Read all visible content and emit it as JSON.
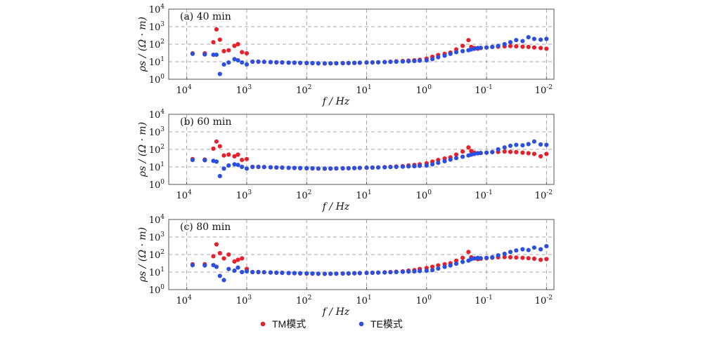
{
  "legend": [
    {
      "label": "TM模式",
      "color": "#e8202a"
    },
    {
      "label": "TE模式",
      "color": "#2b4fe0"
    }
  ],
  "chart_data": [
    {
      "type": "scatter",
      "title": "(a) 40 min",
      "xlabel": "f / Hz",
      "ylabel": "ρs / (Ω · m)",
      "xscale": "log",
      "x_reversed": true,
      "xlim": [
        20000,
        0.0075
      ],
      "yscale": "log",
      "ylim": [
        1,
        10000
      ],
      "grid": true,
      "series": [
        {
          "name": "TM模式",
          "color": "#e8202a",
          "x": [
            8000,
            5000,
            3600,
            3200,
            2800,
            2400,
            2000,
            1600,
            1400,
            1200,
            1000,
            800,
            640,
            512,
            400,
            320,
            256,
            200,
            160,
            128,
            100,
            80,
            64,
            50,
            40,
            32,
            25,
            20,
            16,
            13,
            10,
            8,
            6.4,
            5,
            4,
            3.2,
            2.5,
            2,
            1.6,
            1.3,
            1,
            0.8,
            0.64,
            0.5,
            0.4,
            0.32,
            0.25,
            0.2,
            0.18,
            0.16,
            0.14,
            0.125,
            0.1,
            0.08,
            0.064,
            0.05,
            0.04,
            0.032,
            0.025,
            0.02,
            0.016,
            0.0125,
            0.01
          ],
          "y": [
            30,
            30,
            130,
            700,
            180,
            40,
            45,
            80,
            100,
            35,
            30,
            10,
            10,
            9.8,
            9.5,
            9.2,
            9,
            8.8,
            8.7,
            8.5,
            8.3,
            8.2,
            8,
            7.9,
            8,
            8.1,
            8.2,
            8.4,
            8.5,
            8.7,
            8.9,
            9,
            9.3,
            9.6,
            10,
            10.5,
            11,
            11.5,
            12,
            13,
            15,
            19,
            24,
            28,
            33,
            50,
            80,
            170,
            70,
            60,
            55,
            60,
            65,
            70,
            72,
            75,
            78,
            75,
            72,
            70,
            65,
            60,
            55
          ]
        },
        {
          "name": "TE模式",
          "color": "#2b4fe0",
          "x": [
            8000,
            5000,
            3600,
            3200,
            2800,
            2400,
            2000,
            1600,
            1400,
            1200,
            1000,
            800,
            640,
            512,
            400,
            320,
            256,
            200,
            160,
            128,
            100,
            80,
            64,
            50,
            40,
            32,
            25,
            20,
            16,
            13,
            10,
            8,
            6.4,
            5,
            4,
            3.2,
            2.5,
            2,
            1.6,
            1.3,
            1,
            0.8,
            0.64,
            0.5,
            0.4,
            0.32,
            0.25,
            0.2,
            0.18,
            0.16,
            0.14,
            0.125,
            0.1,
            0.08,
            0.064,
            0.05,
            0.04,
            0.032,
            0.025,
            0.02,
            0.016,
            0.0125,
            0.01
          ],
          "y": [
            28,
            26,
            25,
            25,
            2,
            7,
            9,
            14,
            12,
            9,
            7,
            10,
            10,
            9.8,
            9.5,
            9.3,
            9.1,
            8.9,
            8.8,
            8.6,
            8.4,
            8.3,
            8.1,
            8,
            8.1,
            8.2,
            8.3,
            8.4,
            8.6,
            8.8,
            9,
            9.1,
            9.3,
            9.5,
            9.8,
            10,
            10.3,
            10.7,
            11,
            11.5,
            12,
            14,
            18,
            22,
            28,
            35,
            40,
            45,
            50,
            55,
            60,
            62,
            65,
            70,
            80,
            100,
            130,
            170,
            150,
            250,
            200,
            180,
            200
          ]
        }
      ]
    },
    {
      "type": "scatter",
      "title": "(b) 60 min",
      "xlabel": "f / Hz",
      "ylabel": "ρs / (Ω · m)",
      "xscale": "log",
      "x_reversed": true,
      "xlim": [
        20000,
        0.0075
      ],
      "yscale": "log",
      "ylim": [
        1,
        10000
      ],
      "grid": true,
      "series": [
        {
          "name": "TM模式",
          "color": "#e8202a",
          "x": [
            8000,
            5000,
            3600,
            3200,
            2800,
            2400,
            2000,
            1600,
            1400,
            1200,
            1000,
            800,
            640,
            512,
            400,
            320,
            256,
            200,
            160,
            128,
            100,
            80,
            64,
            50,
            40,
            32,
            25,
            20,
            16,
            13,
            10,
            8,
            6.4,
            5,
            4,
            3.2,
            2.5,
            2,
            1.6,
            1.3,
            1,
            0.8,
            0.64,
            0.5,
            0.4,
            0.32,
            0.25,
            0.2,
            0.18,
            0.16,
            0.14,
            0.125,
            0.1,
            0.08,
            0.064,
            0.05,
            0.04,
            0.032,
            0.025,
            0.02,
            0.016,
            0.0125,
            0.01
          ],
          "y": [
            28,
            26,
            110,
            280,
            150,
            45,
            50,
            40,
            50,
            25,
            28,
            10,
            10,
            9.8,
            9.5,
            9.2,
            9,
            8.8,
            8.6,
            8.4,
            8.2,
            8.1,
            8,
            7.9,
            8,
            8.1,
            8.2,
            8.3,
            8.5,
            8.7,
            8.9,
            9.1,
            9.4,
            9.7,
            10,
            10.5,
            11,
            12,
            13,
            14,
            16,
            20,
            25,
            30,
            35,
            50,
            75,
            130,
            80,
            65,
            60,
            62,
            65,
            70,
            72,
            75,
            72,
            70,
            65,
            60,
            55,
            40,
            55
          ]
        },
        {
          "name": "TE模式",
          "color": "#2b4fe0",
          "x": [
            8000,
            5000,
            3600,
            3200,
            2800,
            2400,
            2000,
            1600,
            1400,
            1200,
            1000,
            800,
            640,
            512,
            400,
            320,
            256,
            200,
            160,
            128,
            100,
            80,
            64,
            50,
            40,
            32,
            25,
            20,
            16,
            13,
            10,
            8,
            6.4,
            5,
            4,
            3.2,
            2.5,
            2,
            1.6,
            1.3,
            1,
            0.8,
            0.64,
            0.5,
            0.4,
            0.32,
            0.25,
            0.2,
            0.18,
            0.16,
            0.14,
            0.125,
            0.1,
            0.08,
            0.064,
            0.05,
            0.04,
            0.032,
            0.025,
            0.02,
            0.016,
            0.0125,
            0.01
          ],
          "y": [
            25,
            24,
            22,
            20,
            3,
            8,
            12,
            14,
            13,
            10,
            8,
            10,
            10,
            9.8,
            9.5,
            9.3,
            9.1,
            8.9,
            8.7,
            8.6,
            8.4,
            8.3,
            8.1,
            8,
            8.1,
            8.2,
            8.3,
            8.4,
            8.6,
            8.8,
            9,
            9.1,
            9.3,
            9.5,
            9.8,
            10,
            10.3,
            10.7,
            11,
            11.5,
            12,
            14,
            17,
            21,
            26,
            32,
            38,
            45,
            50,
            55,
            60,
            62,
            65,
            70,
            100,
            130,
            160,
            180,
            170,
            200,
            280,
            190,
            180
          ]
        }
      ]
    },
    {
      "type": "scatter",
      "title": "(c) 80 min",
      "xlabel": "f / Hz",
      "ylabel": "ρs / (Ω · m)",
      "xscale": "log",
      "x_reversed": true,
      "xlim": [
        20000,
        0.0075
      ],
      "yscale": "log",
      "ylim": [
        1,
        10000
      ],
      "grid": true,
      "series": [
        {
          "name": "TM模式",
          "color": "#e8202a",
          "x": [
            8000,
            5000,
            3600,
            3200,
            2800,
            2400,
            2000,
            1600,
            1400,
            1200,
            1000,
            800,
            640,
            512,
            400,
            320,
            256,
            200,
            160,
            128,
            100,
            80,
            64,
            50,
            40,
            32,
            25,
            20,
            16,
            13,
            10,
            8,
            6.4,
            5,
            4,
            3.2,
            2.5,
            2,
            1.6,
            1.3,
            1,
            0.8,
            0.64,
            0.5,
            0.4,
            0.32,
            0.25,
            0.2,
            0.18,
            0.16,
            0.14,
            0.125,
            0.1,
            0.08,
            0.064,
            0.05,
            0.04,
            0.032,
            0.025,
            0.02,
            0.016,
            0.0125,
            0.01
          ],
          "y": [
            28,
            28,
            80,
            380,
            120,
            60,
            100,
            40,
            50,
            60,
            15,
            10,
            10,
            9.8,
            9.5,
            9.2,
            9,
            8.8,
            8.6,
            8.4,
            8.2,
            8.1,
            8,
            7.9,
            8,
            8.1,
            8.2,
            8.3,
            8.5,
            8.7,
            8.9,
            9.1,
            9.4,
            9.7,
            10,
            10.5,
            11,
            12,
            13,
            15,
            17,
            20,
            24,
            28,
            32,
            45,
            65,
            140,
            70,
            60,
            55,
            58,
            62,
            66,
            70,
            72,
            70,
            68,
            65,
            62,
            58,
            50,
            55
          ]
        },
        {
          "name": "TE模式",
          "color": "#2b4fe0",
          "x": [
            8000,
            5000,
            3600,
            3200,
            2800,
            2400,
            2000,
            1600,
            1400,
            1200,
            1000,
            800,
            640,
            512,
            400,
            320,
            256,
            200,
            160,
            128,
            100,
            80,
            64,
            50,
            40,
            32,
            25,
            20,
            16,
            13,
            10,
            8,
            6.4,
            5,
            4,
            3.2,
            2.5,
            2,
            1.6,
            1.3,
            1,
            0.8,
            0.64,
            0.5,
            0.4,
            0.32,
            0.25,
            0.2,
            0.18,
            0.16,
            0.14,
            0.125,
            0.1,
            0.08,
            0.064,
            0.05,
            0.04,
            0.032,
            0.025,
            0.02,
            0.016,
            0.0125,
            0.01
          ],
          "y": [
            25,
            24,
            25,
            20,
            6,
            3.5,
            15,
            12,
            18,
            10,
            11,
            10,
            10,
            9.8,
            9.5,
            9.3,
            9.1,
            8.9,
            8.7,
            8.6,
            8.4,
            8.3,
            8.1,
            8,
            8.1,
            8.2,
            8.3,
            8.4,
            8.6,
            8.8,
            9,
            9.1,
            9.3,
            9.5,
            9.8,
            10,
            10.3,
            10.7,
            11,
            11.5,
            12,
            13,
            16,
            20,
            24,
            30,
            38,
            45,
            55,
            60,
            65,
            62,
            65,
            70,
            90,
            110,
            140,
            170,
            200,
            180,
            250,
            200,
            300
          ]
        }
      ]
    }
  ]
}
